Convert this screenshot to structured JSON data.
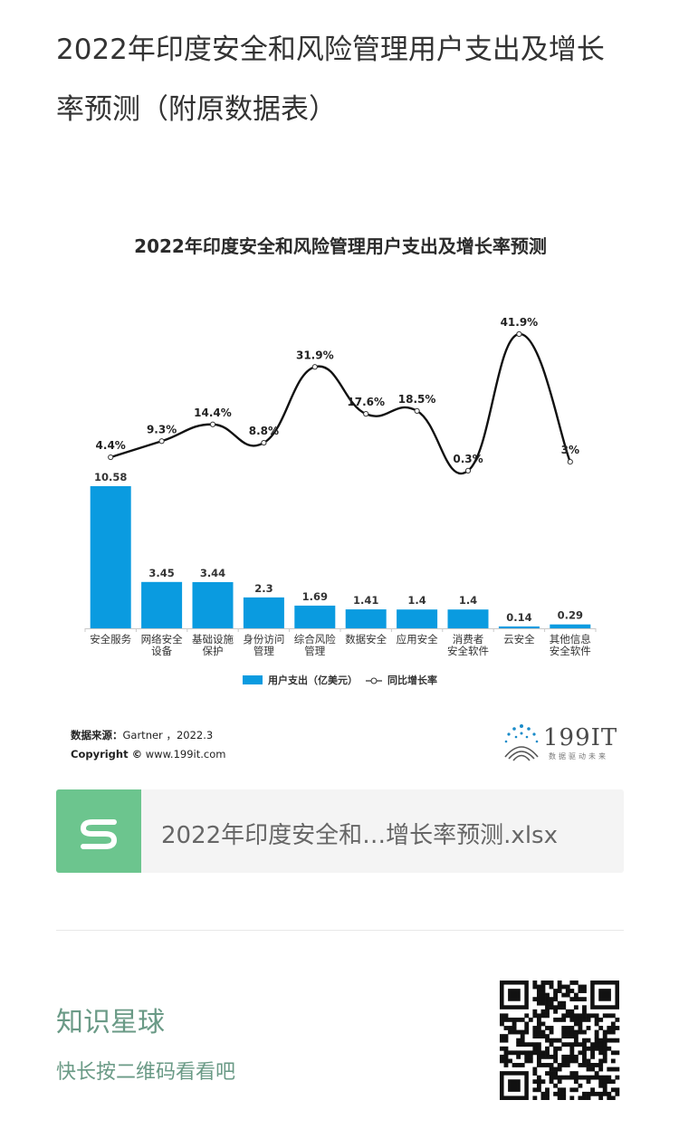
{
  "article": {
    "title": "2022年印度安全和风险管理用户支出及增长率预测（附原数据表）"
  },
  "chart_data": {
    "type": "bar",
    "title": "2022年印度安全和风险管理用户支出及增长率预测",
    "categories": [
      [
        "安全服务"
      ],
      [
        "网络安全",
        "设备"
      ],
      [
        "基础设施",
        "保护"
      ],
      [
        "身份访问",
        "管理"
      ],
      [
        "综合风险",
        "管理"
      ],
      [
        "数据安全"
      ],
      [
        "应用安全"
      ],
      [
        "消费者",
        "安全软件"
      ],
      [
        "云安全"
      ],
      [
        "其他信息",
        "安全软件"
      ]
    ],
    "series": [
      {
        "name": "用户支出（亿美元）",
        "type": "bar",
        "color": "#0a9be0",
        "values": [
          10.58,
          3.45,
          3.44,
          2.3,
          1.69,
          1.41,
          1.4,
          1.4,
          0.14,
          0.29
        ],
        "labels": [
          "10.58",
          "3.45",
          "3.44",
          "2.3",
          "1.69",
          "1.41",
          "1.4",
          "1.4",
          "0.14",
          "0.29"
        ]
      },
      {
        "name": "同比增长率",
        "type": "line",
        "color": "#111111",
        "values": [
          4.4,
          9.3,
          14.4,
          8.8,
          31.9,
          17.6,
          18.5,
          0.3,
          41.9,
          3.0
        ],
        "labels": [
          "4.4%",
          "9.3%",
          "14.4%",
          "8.8%",
          "31.9%",
          "17.6%",
          "18.5%",
          "0.3%",
          "41.9%",
          "3%"
        ]
      }
    ],
    "legend_position": "bottom-center",
    "grid": false
  },
  "source": {
    "label": "数据来源：",
    "text": "Gartner ，2022.3",
    "copyright_label": "Copyright ©",
    "copyright_text": " www.199it.com"
  },
  "brand": {
    "name": "199IT",
    "slogan": "数据驱动未来"
  },
  "file_card": {
    "icon": "spreadsheet-s-icon",
    "name": "2022年印度安全和…增长率预测.xlsx"
  },
  "planet": {
    "name": "知识星球",
    "hint": "快长按二维码看看吧"
  }
}
